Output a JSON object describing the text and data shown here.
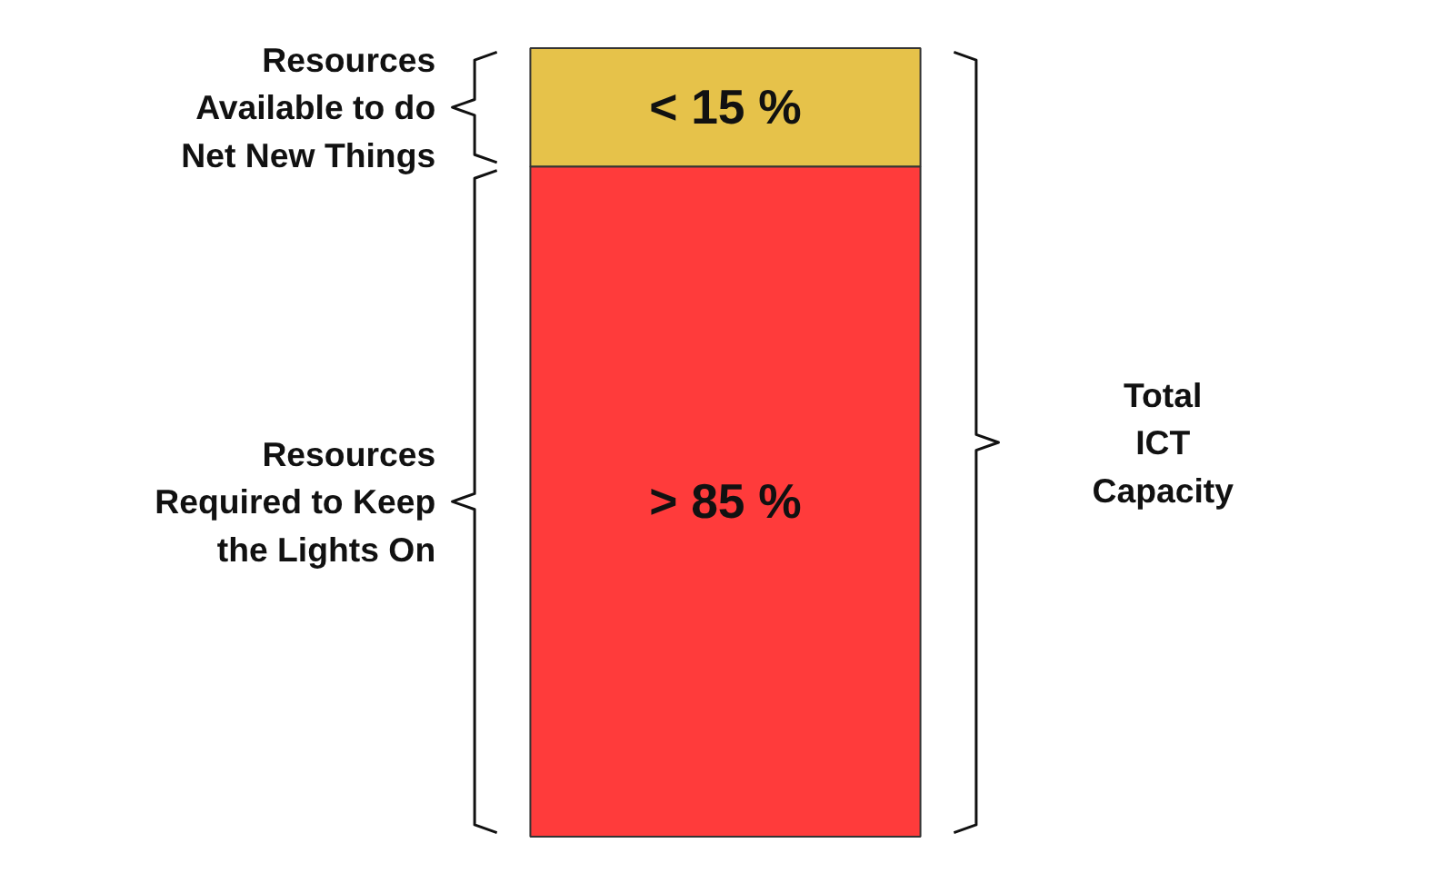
{
  "chart_data": {
    "type": "bar",
    "stacked": true,
    "categories": [
      null
    ],
    "series": [
      {
        "name": "Resources Required to Keep the Lights On",
        "color": "#ff3b3b",
        "values": [
          85
        ],
        "value_labels": [
          "> 85 %"
        ]
      },
      {
        "name": "Resources Available to do Net New Things",
        "color": "#e6c24a",
        "values": [
          15
        ],
        "value_labels": [
          "< 15 %"
        ]
      }
    ],
    "annotations": [
      {
        "text": "Total ICT Capacity"
      }
    ]
  }
}
